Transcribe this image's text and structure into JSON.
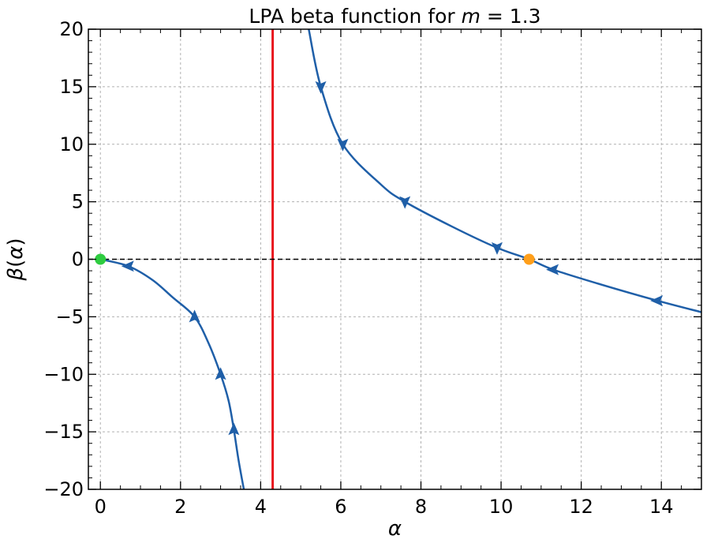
{
  "chart_data": {
    "type": "line",
    "title": {
      "prefix": "LPA beta function for ",
      "var": "m",
      "suffix": " = 1.3"
    },
    "xlabel": "α",
    "ylabel": {
      "beta": "β",
      "open": "(",
      "var": "α",
      "close": ")"
    },
    "xlim": [
      -0.3,
      15
    ],
    "ylim": [
      -20,
      20
    ],
    "xticks": [
      0,
      2,
      4,
      6,
      8,
      10,
      12,
      14
    ],
    "xtick_labels": [
      "0",
      "2",
      "4",
      "6",
      "8",
      "10",
      "12",
      "14"
    ],
    "yticks": [
      -20,
      -15,
      -10,
      -5,
      0,
      5,
      10,
      15,
      20
    ],
    "ytick_labels": [
      "−20",
      "−15",
      "−10",
      "−5",
      "0",
      "5",
      "10",
      "15",
      "20"
    ],
    "grid": true,
    "series": [
      {
        "color": "#1f5fa8",
        "x": [
          0,
          0.7,
          1.3,
          1.8,
          2.35,
          2.7,
          3.0,
          3.2,
          3.33,
          3.45,
          3.58
        ],
        "y": [
          0,
          -0.6,
          -1.8,
          -3.3,
          -5,
          -7.3,
          -10,
          -12.3,
          -14.8,
          -17.5,
          -20
        ]
      },
      {
        "color": "#1f5fa8",
        "x": [
          5.2,
          5.5,
          6.05,
          7.0,
          7.6,
          8.8,
          9.9,
          10.7,
          11.3,
          12.5,
          13.9,
          15.0
        ],
        "y": [
          20,
          15,
          10,
          6.5,
          5,
          2.8,
          1,
          0,
          -0.9,
          -2.2,
          -3.6,
          -4.6
        ]
      }
    ],
    "flow_arrows": [
      {
        "x": 0.7,
        "y": -0.6,
        "dir": "left"
      },
      {
        "x": 2.35,
        "y": -5,
        "dir": "up"
      },
      {
        "x": 3.0,
        "y": -10,
        "dir": "up"
      },
      {
        "x": 3.33,
        "y": -14.8,
        "dir": "up"
      },
      {
        "x": 5.5,
        "y": 15,
        "dir": "down"
      },
      {
        "x": 6.05,
        "y": 10,
        "dir": "down"
      },
      {
        "x": 7.6,
        "y": 5,
        "dir": "down"
      },
      {
        "x": 9.9,
        "y": 1,
        "dir": "down"
      },
      {
        "x": 11.3,
        "y": -0.9,
        "dir": "left"
      },
      {
        "x": 13.9,
        "y": -3.6,
        "dir": "left"
      }
    ],
    "vertical_line": {
      "x": 4.3,
      "color": "#e8141c"
    },
    "zero_line": {
      "y": 0,
      "color": "#000000",
      "style": "dashed"
    },
    "fixed_points": [
      {
        "x": 0,
        "y": 0,
        "color": "#2ecc40"
      },
      {
        "x": 10.7,
        "y": 0,
        "color": "#ff9f1a"
      }
    ]
  }
}
